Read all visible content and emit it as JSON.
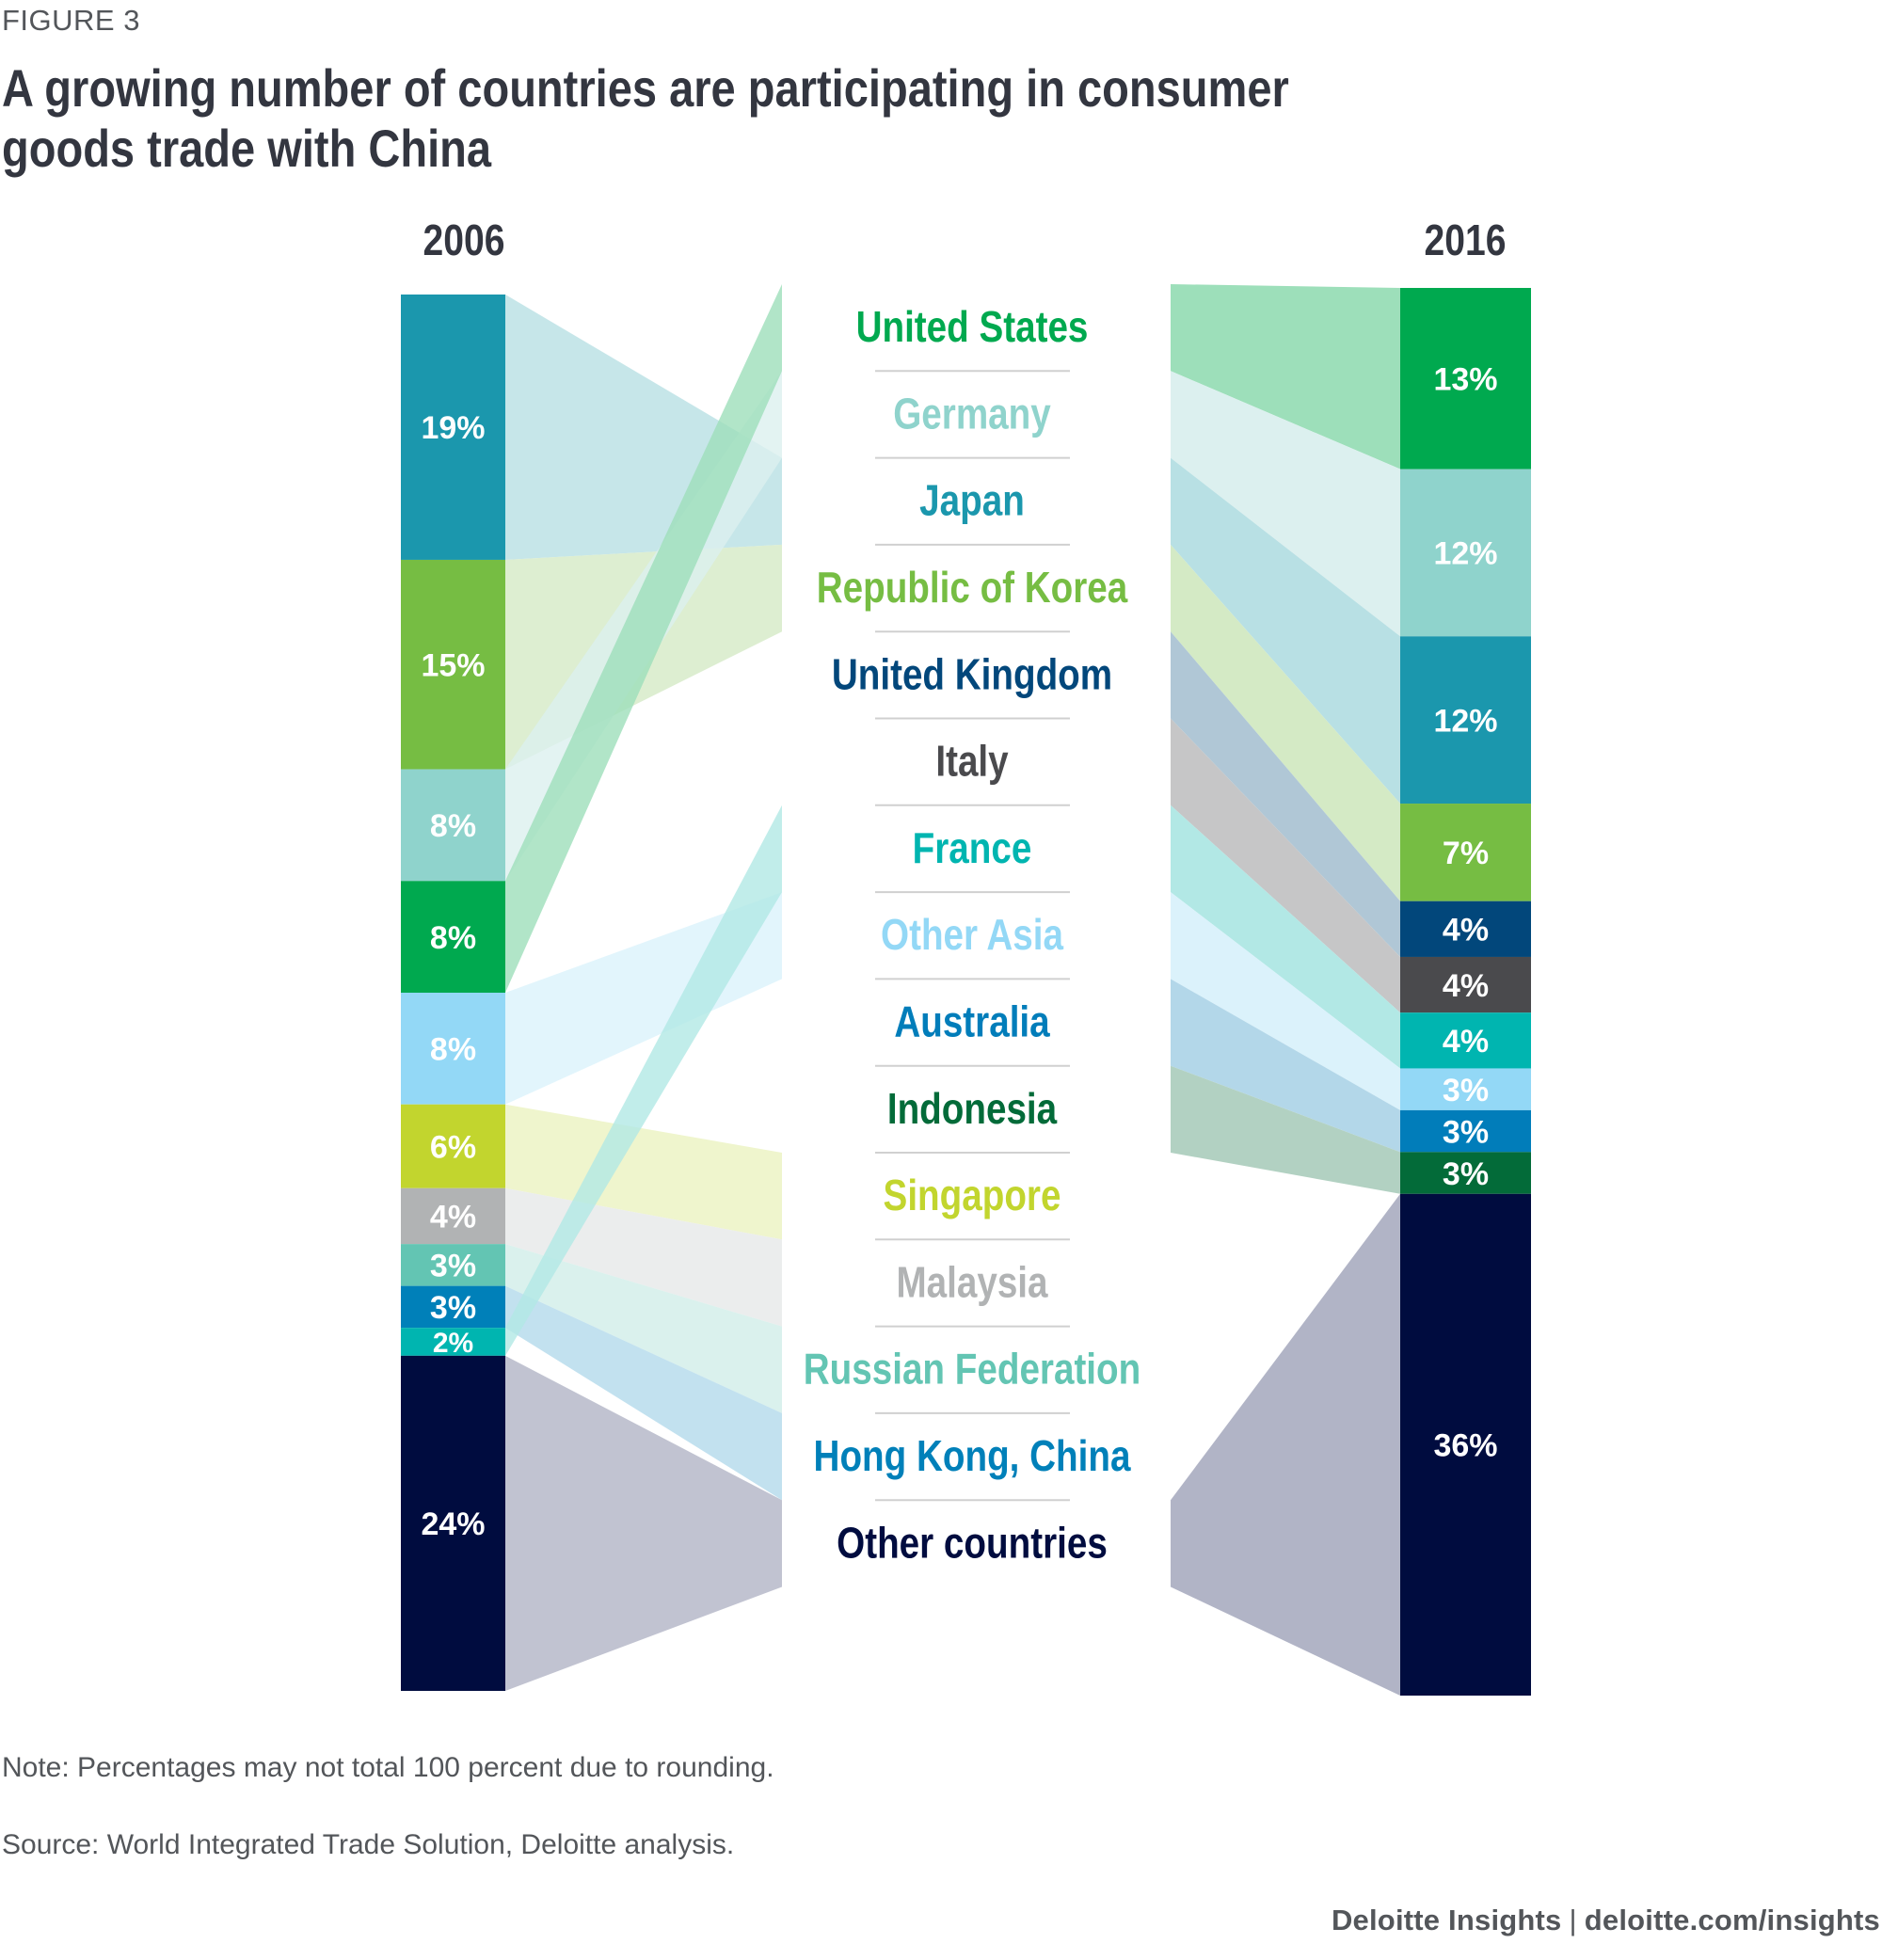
{
  "figure_label": "FIGURE 3",
  "title": "A growing number of countries are participating in consumer goods trade with China",
  "note": "Note: Percentages may not total 100 percent due to rounding.",
  "source": "Source: World Integrated Trade Solution, Deloitte analysis.",
  "credit": {
    "brand": "Deloitte Insights",
    "separator": "|",
    "url": "deloitte.com/insights"
  },
  "chart_data": {
    "type": "sankey-stacked-bar",
    "title": "A growing number of countries are participating in consumer goods trade with China",
    "unit": "percent share",
    "years": [
      "2006",
      "2016"
    ],
    "legend_order": [
      "United States",
      "Germany",
      "Japan",
      "Republic of Korea",
      "United Kingdom",
      "Italy",
      "France",
      "Other Asia",
      "Australia",
      "Indonesia",
      "Singapore",
      "Malaysia",
      "Russian Federation",
      "Hong Kong, China",
      "Other countries"
    ],
    "countries": [
      {
        "name": "United States",
        "color": "#00a94f",
        "band": "#9ddfba",
        "v2006": 8,
        "v2016": 13
      },
      {
        "name": "Germany",
        "color": "#8fd3cc",
        "band": "#dcf0ef",
        "v2006": 8,
        "v2016": 12
      },
      {
        "name": "Japan",
        "color": "#1b97ad",
        "band": "#b8e0e4",
        "v2006": 19,
        "v2016": 12
      },
      {
        "name": "Republic of Korea",
        "color": "#76bd43",
        "band": "#d4eac5",
        "v2006": 15,
        "v2016": 7
      },
      {
        "name": "United Kingdom",
        "color": "#02477b",
        "band": "#b0c7d6",
        "v2006": null,
        "v2016": 4
      },
      {
        "name": "Italy",
        "color": "#4a4a4d",
        "band": "#c6c6c7",
        "v2006": null,
        "v2016": 4
      },
      {
        "name": "France",
        "color": "#00b5b0",
        "band": "#b2e8e5",
        "v2006": 2,
        "v2016": 4
      },
      {
        "name": "Other Asia",
        "color": "#93d8f6",
        "band": "#dbf2fb",
        "v2006": 8,
        "v2016": 3
      },
      {
        "name": "Australia",
        "color": "#017dba",
        "band": "#b3d7e9",
        "v2006": null,
        "v2016": 3
      },
      {
        "name": "Indonesia",
        "color": "#036b39",
        "band": "#b2d1c2",
        "v2006": null,
        "v2016": 3
      },
      {
        "name": "Singapore",
        "color": "#c2d52e",
        "band": "#ebf2c1",
        "v2006": 6,
        "v2016": null
      },
      {
        "name": "Malaysia",
        "color": "#b1b3b4",
        "band": "#e6e8e8",
        "v2006": 4,
        "v2016": null
      },
      {
        "name": "Russian Federation",
        "color": "#63c5b3",
        "band": "#d1ede8",
        "v2006": 3,
        "v2016": null
      },
      {
        "name": "Hong Kong, China",
        "color": "#0080b9",
        "band": "#b3d9eb",
        "v2006": 3,
        "v2016": null
      },
      {
        "name": "Other countries",
        "color": "#000c3f",
        "band": "#b1b4c6",
        "v2006": 24,
        "v2016": 36
      }
    ],
    "stack_order_2006": [
      "Japan",
      "Republic of Korea",
      "Germany",
      "United States",
      "Other Asia",
      "Singapore",
      "Malaysia",
      "Russian Federation",
      "Hong Kong, China",
      "France",
      "Other countries"
    ],
    "stack_order_2016": [
      "United States",
      "Germany",
      "Japan",
      "Republic of Korea",
      "United Kingdom",
      "Italy",
      "France",
      "Other Asia",
      "Australia",
      "Indonesia",
      "Other countries"
    ]
  }
}
